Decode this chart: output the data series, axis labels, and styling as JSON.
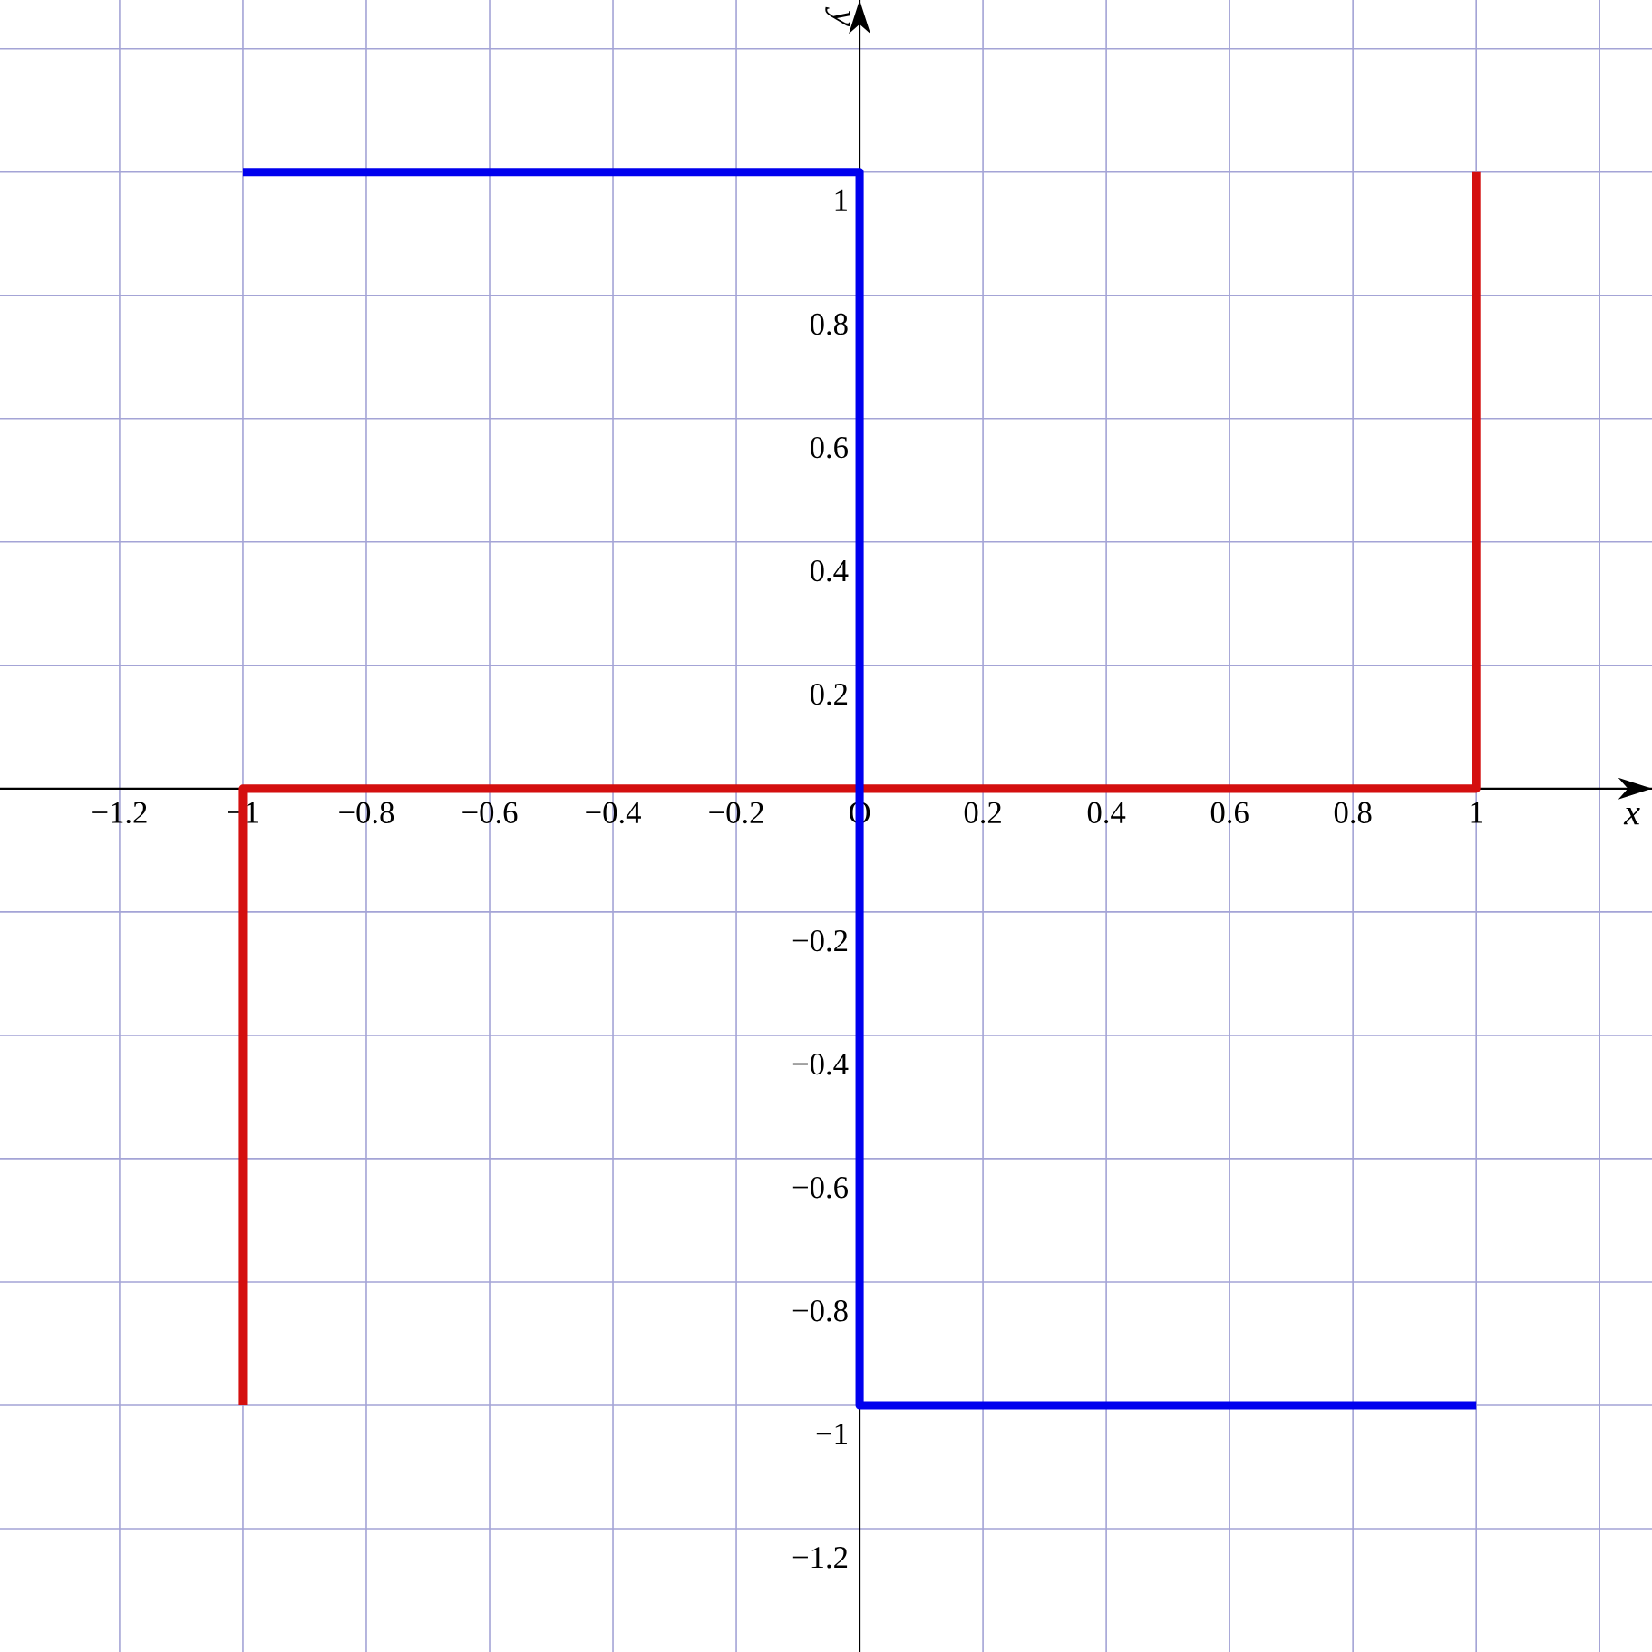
{
  "chart_data": {
    "type": "line",
    "xlabel": "x",
    "ylabel": "y",
    "xlim": [
      -1.394,
      1.285
    ],
    "ylim": [
      -1.4,
      1.279
    ],
    "xticks": [
      {
        "value": -1.2,
        "label": "−1.2"
      },
      {
        "value": -1,
        "label": "−1"
      },
      {
        "value": -0.8,
        "label": "−0.8"
      },
      {
        "value": -0.6,
        "label": "−0.6"
      },
      {
        "value": -0.4,
        "label": "−0.4"
      },
      {
        "value": -0.2,
        "label": "−0.2"
      },
      {
        "value": 0,
        "label": "O"
      },
      0.2,
      0.4,
      0.6,
      0.8,
      1,
      {
        "value": 1.2,
        "label": null
      }
    ],
    "yticks": [
      {
        "value": -1.2,
        "label": "−1.2"
      },
      {
        "value": -1,
        "label": "−1"
      },
      {
        "value": -0.8,
        "label": "−0.8"
      },
      {
        "value": -0.6,
        "label": "−0.6"
      },
      {
        "value": -0.4,
        "label": "−0.4"
      },
      {
        "value": -0.2,
        "label": "−0.2"
      },
      0.2,
      0.4,
      0.6,
      0.8,
      1,
      {
        "value": 1.2,
        "label": null
      }
    ],
    "grid": true,
    "marker": "none",
    "line_style": "solid",
    "series": [
      {
        "color": "#d40f0f",
        "x": [
          -1,
          -1,
          1,
          1
        ],
        "values": [
          -1,
          0,
          0,
          1
        ]
      },
      {
        "color": "#0000ee",
        "x": [
          -1,
          0,
          0,
          1
        ],
        "values": [
          1,
          1,
          -1,
          -1
        ]
      }
    ]
  }
}
